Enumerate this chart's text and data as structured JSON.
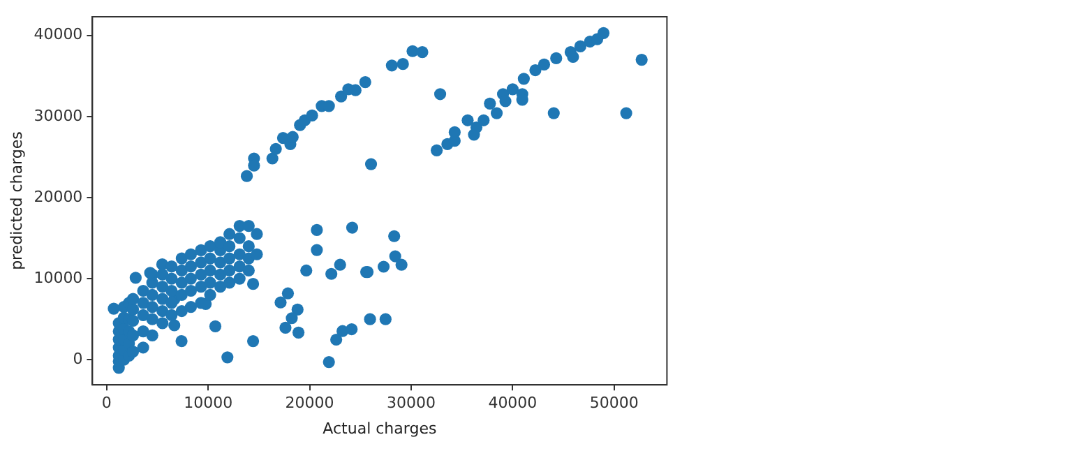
{
  "chart_data": {
    "type": "scatter",
    "xlabel": "Actual charges",
    "ylabel": "predicted charges",
    "marker": "circle",
    "xlim": [
      -1400,
      55200
    ],
    "ylim": [
      -3100,
      42300
    ],
    "xticks": [
      0,
      10000,
      20000,
      30000,
      40000,
      50000
    ],
    "yticks": [
      0,
      10000,
      20000,
      30000,
      40000
    ],
    "series": [
      {
        "color": "#1f77b4",
        "x": [
          13810,
          14520,
          14520,
          16330,
          16670,
          17380,
          18100,
          18330,
          19050,
          19520,
          20240,
          21190,
          21900,
          23100,
          23810,
          24520,
          25480,
          28100,
          29190,
          30140,
          31100,
          32860,
          26050,
          32520,
          33570,
          34290,
          34290,
          35570,
          36190,
          36430,
          37140,
          37760,
          38430,
          39050,
          39290,
          40000,
          40950,
          40950,
          41100,
          42240,
          43100,
          44050,
          44290,
          45710,
          45950,
          46670,
          47620,
          48330,
          48950,
          51190,
          52710,
          28330,
          28430,
          29050,
          27290,
          25710,
          25950,
          27480,
          20710,
          20710,
          24190,
          23000,
          22140,
          25570,
          19670,
          14430,
          17140,
          17860,
          18810,
          18240,
          17620,
          18900,
          22620,
          23240,
          24140,
          21900,
          14430,
          11900,
          10710,
          7380,
          6670,
          9760,
          6670,
          700,
          1200,
          1200,
          1200,
          1200,
          1200,
          1200,
          1200,
          1700,
          1700,
          1700,
          1700,
          1700,
          1700,
          2200,
          2200,
          2200,
          2200,
          2200,
          2600,
          2600,
          2600,
          2600,
          2600,
          3600,
          3600,
          3600,
          3600,
          3600,
          4500,
          4500,
          4500,
          4500,
          4500,
          4500,
          2860,
          4290,
          5480,
          5500,
          5500,
          5500,
          5500,
          5500,
          6400,
          6400,
          6400,
          6400,
          6400,
          7400,
          7400,
          7400,
          7400,
          7400,
          8300,
          8300,
          8300,
          8300,
          8300,
          9300,
          9300,
          9300,
          9300,
          9300,
          10200,
          10200,
          10200,
          10200,
          10200,
          11200,
          11200,
          11200,
          11200,
          11200,
          12100,
          12100,
          12100,
          12100,
          12100,
          13100,
          13100,
          13100,
          13100,
          13100,
          14000,
          14000,
          14000,
          14000,
          14800,
          14800
        ],
        "values": [
          22650,
          24820,
          23940,
          24820,
          26000,
          27350,
          26590,
          27470,
          28940,
          29530,
          30120,
          31290,
          31290,
          32470,
          33350,
          33240,
          34240,
          36290,
          36470,
          38060,
          37940,
          32760,
          24120,
          25820,
          26590,
          28060,
          27000,
          29530,
          27760,
          28650,
          29530,
          31590,
          30410,
          32760,
          31880,
          33350,
          32760,
          32060,
          34650,
          35710,
          36410,
          30410,
          37180,
          37940,
          37350,
          38650,
          39240,
          39530,
          40290,
          30410,
          37000,
          15240,
          12760,
          11710,
          11470,
          10820,
          5000,
          5000,
          16000,
          13530,
          16290,
          11710,
          10590,
          10820,
          11000,
          9350,
          7060,
          8180,
          6180,
          5120,
          3940,
          3350,
          2470,
          3530,
          3760,
          -290,
          2290,
          290,
          4120,
          2290,
          7470,
          6880,
          4240,
          6300,
          -1000,
          -200,
          500,
          1500,
          2500,
          3500,
          4500,
          0,
          1200,
          2500,
          3800,
          5200,
          6500,
          500,
          2000,
          3500,
          5000,
          7000,
          1000,
          3000,
          4800,
          6200,
          7500,
          1500,
          3500,
          5500,
          7000,
          8500,
          3000,
          5000,
          6500,
          8000,
          9500,
          10500,
          10100,
          10700,
          11760,
          4500,
          6000,
          7500,
          9000,
          10500,
          5500,
          7000,
          8500,
          10000,
          11500,
          6000,
          8000,
          9500,
          11000,
          12500,
          6500,
          8500,
          10000,
          11500,
          13000,
          7000,
          9000,
          10500,
          12000,
          13500,
          8000,
          9500,
          11000,
          12500,
          14000,
          9000,
          10500,
          12000,
          13500,
          14500,
          9500,
          11000,
          12500,
          14000,
          15500,
          10000,
          11500,
          13000,
          15000,
          16500,
          11000,
          12500,
          14000,
          16500,
          13000,
          15500
        ]
      }
    ]
  }
}
